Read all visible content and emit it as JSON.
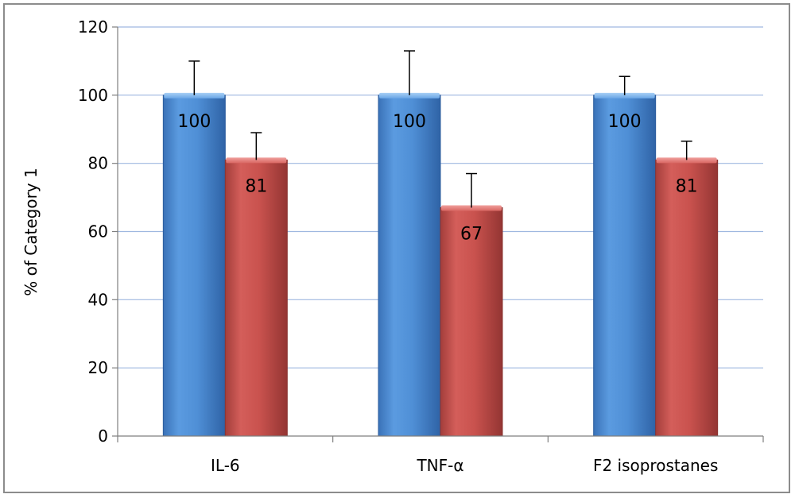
{
  "chart_data": {
    "type": "bar",
    "categories": [
      "IL-6",
      "TNF-α",
      "F2 isoprostanes"
    ],
    "series": [
      {
        "values": [
          100,
          100,
          100
        ],
        "errors": [
          10,
          13,
          5.5
        ],
        "color": "#4f8fd6",
        "labels": [
          "100",
          "100",
          "100"
        ]
      },
      {
        "values": [
          81,
          67,
          81
        ],
        "errors": [
          8,
          10,
          5.5
        ],
        "color": "#c0504d",
        "labels": [
          "81",
          "67",
          "81"
        ]
      }
    ],
    "title": "",
    "xlabel": "",
    "ylabel": "% of Category 1",
    "ylim": [
      0,
      120
    ],
    "yticks": [
      0,
      20,
      40,
      60,
      80,
      100,
      120
    ],
    "grid": true
  }
}
